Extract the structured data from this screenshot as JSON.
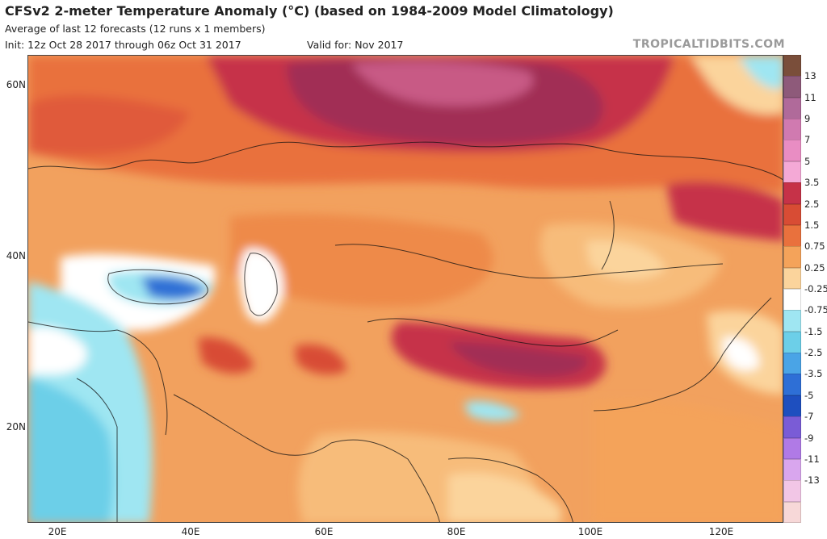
{
  "header": {
    "title": "CFSv2 2-meter Temperature Anomaly (°C) (based on 1984-2009 Model Climatology)",
    "subtitle": "Average of last 12 forecasts (12 runs x 1 members)",
    "init": "Init: 12z Oct 28 2017 through 06z Oct 31 2017",
    "valid": "Valid for: Nov 2017",
    "credit": "TROPICALTIDBITS.COM"
  },
  "axes": {
    "lat_labels": [
      "60N",
      "40N",
      "20N"
    ],
    "lon_labels": [
      "20E",
      "40E",
      "60E",
      "80E",
      "100E",
      "120E"
    ]
  },
  "colorbar": {
    "labels": [
      "13",
      "11",
      "9",
      "7",
      "5",
      "3.5",
      "2.5",
      "1.5",
      "0.75",
      "0.25",
      "-0.25",
      "-0.75",
      "-1.5",
      "-2.5",
      "-3.5",
      "-5",
      "-7",
      "-9",
      "-11",
      "-13"
    ],
    "colors": [
      "#7a4e3a",
      "#8e5a7a",
      "#b06a9a",
      "#d07ab0",
      "#e98dc3",
      "#f4a9d6",
      "#c63248",
      "#d84c34",
      "#e9713d",
      "#f4a35a",
      "#fbd49c",
      "#ffffff",
      "#9fe6f2",
      "#6ccfe8",
      "#4aa4e6",
      "#2e6fd6",
      "#1e4fbf",
      "#7a5cd6",
      "#b07ae6",
      "#d9a6ee",
      "#f2c6e6",
      "#f7d8d8"
    ]
  },
  "colors": {
    "warm_base": "#f2a15e",
    "warm_mid": "#e9713d",
    "hot": "#c63248",
    "very_hot": "#a12e55",
    "extreme": "#c85a85",
    "pale_warm": "#fbd49c",
    "neutral": "#ffffff",
    "cool": "#9fe6f2",
    "cooler": "#6ccfe8",
    "cold": "#2e6fd6"
  }
}
